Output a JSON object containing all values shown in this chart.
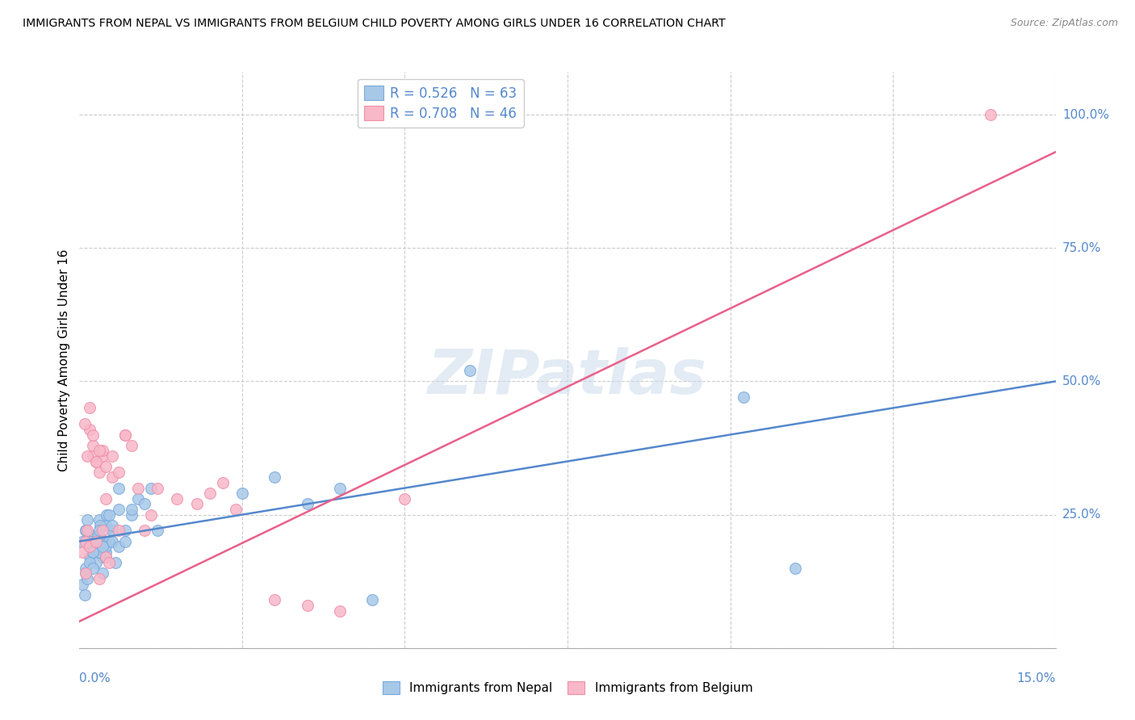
{
  "title": "IMMIGRANTS FROM NEPAL VS IMMIGRANTS FROM BELGIUM CHILD POVERTY AMONG GIRLS UNDER 16 CORRELATION CHART",
  "source": "Source: ZipAtlas.com",
  "ylabel": "Child Poverty Among Girls Under 16",
  "ytick_values": [
    0.0,
    0.25,
    0.5,
    0.75,
    1.0
  ],
  "ytick_labels": [
    "",
    "25.0%",
    "50.0%",
    "75.0%",
    "100.0%"
  ],
  "xlim": [
    0.0,
    0.15
  ],
  "ylim": [
    0.0,
    1.08
  ],
  "nepal_color": "#a8c8e8",
  "nepal_line_color": "#5588cc",
  "nepal_edge_color": "#7aaadd",
  "belgium_color": "#f8b8c8",
  "belgium_line_color": "#e8608a",
  "belgium_edge_color": "#ee90aa",
  "nepal_R": 0.526,
  "nepal_N": 63,
  "belgium_R": 0.708,
  "belgium_N": 46,
  "legend_label_nepal": "Immigrants from Nepal",
  "legend_label_belgium": "Immigrants from Belgium",
  "watermark": "ZIPatlas",
  "nepal_trend_x": [
    0.0,
    0.15
  ],
  "nepal_trend_y": [
    0.2,
    0.5
  ],
  "belgium_trend_x": [
    0.0,
    0.15
  ],
  "belgium_trend_y": [
    0.05,
    0.93
  ],
  "nepal_scatter_x": [
    0.0005,
    0.001,
    0.0015,
    0.002,
    0.0025,
    0.003,
    0.0035,
    0.004,
    0.0045,
    0.005,
    0.001,
    0.0015,
    0.002,
    0.0025,
    0.003,
    0.0035,
    0.004,
    0.0045,
    0.005,
    0.0055,
    0.001,
    0.0012,
    0.0018,
    0.002,
    0.0028,
    0.0032,
    0.004,
    0.0042,
    0.005,
    0.006,
    0.0005,
    0.001,
    0.0015,
    0.002,
    0.003,
    0.004,
    0.005,
    0.006,
    0.007,
    0.008,
    0.0008,
    0.0012,
    0.002,
    0.0025,
    0.003,
    0.0035,
    0.0045,
    0.005,
    0.006,
    0.007,
    0.008,
    0.009,
    0.01,
    0.011,
    0.012,
    0.025,
    0.03,
    0.035,
    0.04,
    0.045,
    0.06,
    0.102,
    0.11
  ],
  "nepal_scatter_y": [
    0.2,
    0.22,
    0.19,
    0.21,
    0.18,
    0.24,
    0.17,
    0.23,
    0.2,
    0.22,
    0.15,
    0.17,
    0.19,
    0.16,
    0.21,
    0.14,
    0.18,
    0.2,
    0.22,
    0.16,
    0.22,
    0.24,
    0.2,
    0.18,
    0.21,
    0.23,
    0.19,
    0.25,
    0.22,
    0.26,
    0.12,
    0.14,
    0.16,
    0.15,
    0.18,
    0.17,
    0.2,
    0.19,
    0.22,
    0.25,
    0.1,
    0.13,
    0.18,
    0.2,
    0.22,
    0.19,
    0.25,
    0.23,
    0.3,
    0.2,
    0.26,
    0.28,
    0.27,
    0.3,
    0.22,
    0.29,
    0.32,
    0.27,
    0.3,
    0.09,
    0.52,
    0.47,
    0.15
  ],
  "belgium_scatter_x": [
    0.0005,
    0.001,
    0.0012,
    0.0015,
    0.002,
    0.0025,
    0.003,
    0.0035,
    0.004,
    0.0045,
    0.001,
    0.0015,
    0.002,
    0.0025,
    0.003,
    0.0035,
    0.004,
    0.005,
    0.006,
    0.007,
    0.0008,
    0.0012,
    0.0015,
    0.002,
    0.0025,
    0.003,
    0.0035,
    0.004,
    0.005,
    0.006,
    0.007,
    0.008,
    0.009,
    0.01,
    0.011,
    0.012,
    0.015,
    0.018,
    0.02,
    0.022,
    0.024,
    0.03,
    0.035,
    0.04,
    0.05,
    0.14
  ],
  "belgium_scatter_y": [
    0.18,
    0.2,
    0.22,
    0.19,
    0.38,
    0.35,
    0.33,
    0.36,
    0.17,
    0.16,
    0.14,
    0.41,
    0.36,
    0.2,
    0.13,
    0.37,
    0.28,
    0.32,
    0.22,
    0.4,
    0.42,
    0.36,
    0.45,
    0.4,
    0.35,
    0.37,
    0.22,
    0.34,
    0.36,
    0.33,
    0.4,
    0.38,
    0.3,
    0.22,
    0.25,
    0.3,
    0.28,
    0.27,
    0.29,
    0.31,
    0.26,
    0.09,
    0.08,
    0.07,
    0.28,
    1.0
  ]
}
